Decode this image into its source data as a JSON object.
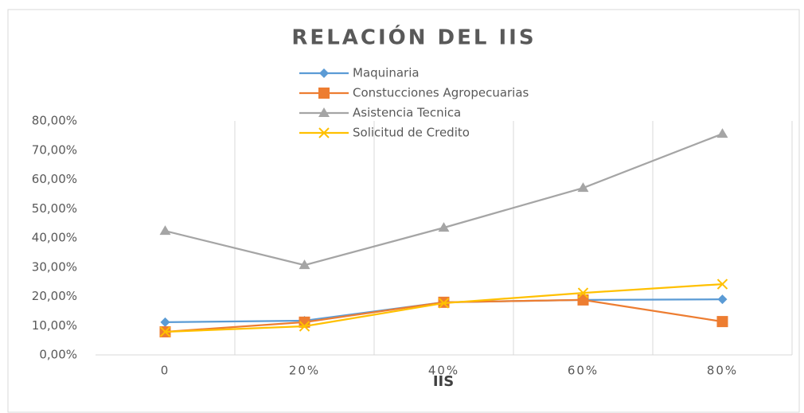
{
  "chart_data": {
    "type": "line",
    "title": "RELACIÓN  DEL IIS",
    "x_label": "IIS",
    "categories": [
      "0",
      "20%",
      "40%",
      "60%",
      "80%"
    ],
    "series": [
      {
        "name": "Maquinaria",
        "color": "#5b9bd5",
        "marker": "diamond",
        "values": [
          11.2,
          11.7,
          18.0,
          18.8,
          19.0
        ]
      },
      {
        "name": "Constucciones Agropecuarias",
        "color": "#ed7d31",
        "marker": "square",
        "values": [
          7.9,
          11.2,
          18.0,
          18.8,
          11.4
        ]
      },
      {
        "name": "Asistencia Tecnica",
        "color": "#a5a5a5",
        "marker": "triangle",
        "values": [
          42.4,
          30.7,
          43.5,
          57.1,
          75.6
        ]
      },
      {
        "name": "Solicitud de Credito",
        "color": "#ffc000",
        "marker": "x",
        "values": [
          7.9,
          9.8,
          17.7,
          21.2,
          24.2
        ]
      }
    ],
    "ylim": [
      0,
      80
    ],
    "yticks": [
      {
        "value": 0,
        "label": "0,00%"
      },
      {
        "value": 10,
        "label": "10,00%"
      },
      {
        "value": 20,
        "label": "20,00%"
      },
      {
        "value": 30,
        "label": "30,00%"
      },
      {
        "value": 40,
        "label": "40,00%"
      },
      {
        "value": 50,
        "label": "50,00%"
      },
      {
        "value": 60,
        "label": "60,00%"
      },
      {
        "value": 70,
        "label": "70,00%"
      },
      {
        "value": 80,
        "label": "80,00%"
      }
    ],
    "legend": "top-left"
  }
}
